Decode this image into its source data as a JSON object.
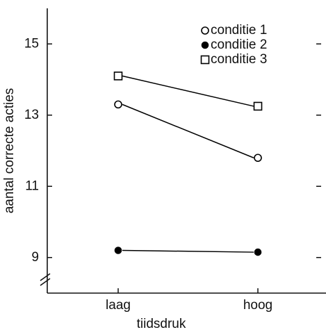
{
  "chart_data": {
    "type": "line",
    "xlabel": "tiidsdruk",
    "ylabel": "aantal correcte acties",
    "categories": [
      "laag",
      "hoog"
    ],
    "series": [
      {
        "name": "conditie 1",
        "color": "#000000",
        "marker": "open-circle",
        "values": [
          13.3,
          11.8
        ]
      },
      {
        "name": "conditie 2",
        "color": "#000000",
        "marker": "filled-circle",
        "values": [
          9.2,
          9.15
        ]
      },
      {
        "name": "conditie 3",
        "color": "#000000",
        "marker": "open-square",
        "values": [
          14.1,
          13.25
        ]
      }
    ],
    "ylim": [
      8,
      16
    ],
    "yticks": [
      9,
      11,
      13,
      15
    ],
    "legend": "upper right"
  }
}
